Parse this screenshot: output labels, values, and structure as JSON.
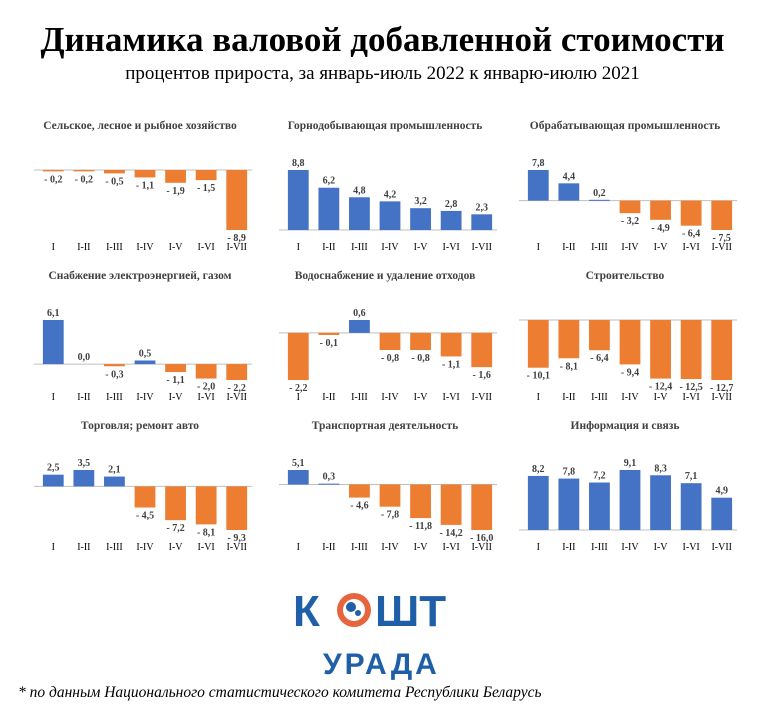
{
  "title": "Динамика валовой добавленной стоимости",
  "subtitle": "процентов прироста, за январь-июль 2022 к январю-июлю 2021",
  "footnote": "* по данным Национального статистического комитета  Республики Беларусь",
  "logo": {
    "top": "КОШТ",
    "bottom": "УРАДА"
  },
  "colors": {
    "positive": "#4472C4",
    "negative": "#ED7D31",
    "logo_blue": "#1f5fa8",
    "logo_orange": "#e8643c"
  },
  "chart_data": [
    {
      "type": "bar",
      "title": "Сельское, лесное и рыбное хозяйство",
      "categories": [
        "I",
        "I-II",
        "I-III",
        "I-IV",
        "I-V",
        "I-VI",
        "I-VII"
      ],
      "values": [
        -0.2,
        -0.2,
        -0.5,
        -1.1,
        -1.9,
        -1.5,
        -8.9
      ],
      "labels": [
        "- 0,2",
        "- 0,2",
        "- 0,5",
        "- 1,1",
        "- 1,9",
        "- 1,5",
        "- 8,9"
      ]
    },
    {
      "type": "bar",
      "title": "Горнодобывающая промышленность",
      "categories": [
        "I",
        "I-II",
        "I-III",
        "I-IV",
        "I-V",
        "I-VI",
        "I-VII"
      ],
      "values": [
        8.8,
        6.2,
        4.8,
        4.2,
        3.2,
        2.8,
        2.3
      ],
      "labels": [
        "8,8",
        "6,2",
        "4,8",
        "4,2",
        "3,2",
        "2,8",
        "2,3"
      ]
    },
    {
      "type": "bar",
      "title": "Обрабатывающая промышленность",
      "categories": [
        "I",
        "I-II",
        "I-III",
        "I-IV",
        "I-V",
        "I-VI",
        "I-VII"
      ],
      "values": [
        7.8,
        4.4,
        0.2,
        -3.2,
        -4.9,
        -6.4,
        -7.5
      ],
      "labels": [
        "7,8",
        "4,4",
        "0,2",
        "- 3,2",
        "- 4,9",
        "- 6,4",
        "- 7,5"
      ]
    },
    {
      "type": "bar",
      "title": "Снабжение электроэнергией, газом",
      "categories": [
        "I",
        "I-II",
        "I-III",
        "I-IV",
        "I-V",
        "I-VI",
        "I-VII"
      ],
      "values": [
        6.1,
        0.0,
        -0.3,
        0.5,
        -1.1,
        -2.0,
        -2.2
      ],
      "labels": [
        "6,1",
        "0,0",
        "- 0,3",
        "0,5",
        "- 1,1",
        "- 2,0",
        "- 2,2"
      ]
    },
    {
      "type": "bar",
      "title": "Водоснабжение и удаление отходов",
      "categories": [
        "I",
        "I-II",
        "I-III",
        "I-IV",
        "I-V",
        "I-VI",
        "I-VII"
      ],
      "values": [
        -2.2,
        -0.1,
        0.6,
        -0.8,
        -0.8,
        -1.1,
        -1.6
      ],
      "labels": [
        "- 2,2",
        "- 0,1",
        "0,6",
        "- 0,8",
        "- 0,8",
        "- 1,1",
        "- 1,6"
      ]
    },
    {
      "type": "bar",
      "title": "Строительство",
      "categories": [
        "I",
        "I-II",
        "I-III",
        "I-IV",
        "I-V",
        "I-VI",
        "I-VII"
      ],
      "values": [
        -10.1,
        -8.1,
        -6.4,
        -9.4,
        -12.4,
        -12.5,
        -12.7
      ],
      "labels": [
        "- 10,1",
        "- 8,1",
        "- 6,4",
        "- 9,4",
        "- 12,4",
        "- 12,5",
        "- 12,7"
      ]
    },
    {
      "type": "bar",
      "title": "Торговля; ремонт авто",
      "categories": [
        "I",
        "I-II",
        "I-III",
        "I-IV",
        "I-V",
        "I-VI",
        "I-VII"
      ],
      "values": [
        2.5,
        3.5,
        2.1,
        -4.5,
        -7.2,
        -8.1,
        -9.3
      ],
      "labels": [
        "2,5",
        "3,5",
        "2,1",
        "- 4,5",
        "- 7,2",
        "- 8,1",
        "- 9,3"
      ]
    },
    {
      "type": "bar",
      "title": "Транспортная деятельность",
      "categories": [
        "I",
        "I-II",
        "I-III",
        "I-IV",
        "I-V",
        "I-VI",
        "I-VII"
      ],
      "values": [
        5.1,
        0.3,
        -4.6,
        -7.8,
        -11.8,
        -14.2,
        -16.0
      ],
      "labels": [
        "5,1",
        "0,3",
        "- 4,6",
        "- 7,8",
        "- 11,8",
        "- 14,2",
        "- 16,0"
      ]
    },
    {
      "type": "bar",
      "title": "Информация и связь",
      "categories": [
        "I",
        "I-II",
        "I-III",
        "I-IV",
        "I-V",
        "I-VI",
        "I-VII"
      ],
      "values": [
        8.2,
        7.8,
        7.2,
        9.1,
        8.3,
        7.1,
        4.9
      ],
      "labels": [
        "8,2",
        "7,8",
        "7,2",
        "9,1",
        "8,3",
        "7,1",
        "4,9"
      ]
    }
  ]
}
